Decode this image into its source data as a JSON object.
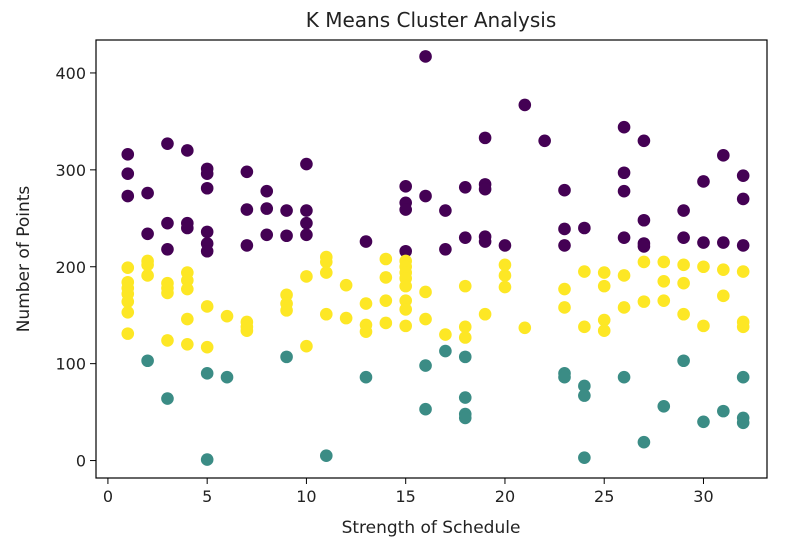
{
  "chart_data": {
    "type": "scatter",
    "title": "K Means Cluster Analysis",
    "xlabel": "Strength of Schedule",
    "ylabel": "Number of Points",
    "xlim": [
      -0.6,
      33.2
    ],
    "ylim": [
      -18,
      434
    ],
    "xticks": [
      0,
      5,
      10,
      15,
      20,
      25,
      30
    ],
    "yticks": [
      0,
      100,
      200,
      300,
      400
    ],
    "grid": false,
    "legend": "none",
    "colors": {
      "cluster_high": "#440154",
      "cluster_mid": "#fde725",
      "cluster_low": "#3b8c85"
    },
    "series": [
      {
        "color": "#440154",
        "points": [
          [
            1,
            316
          ],
          [
            1,
            296
          ],
          [
            1,
            273
          ],
          [
            2,
            276
          ],
          [
            2,
            234
          ],
          [
            3,
            327
          ],
          [
            3,
            245
          ],
          [
            3,
            218
          ],
          [
            4,
            320
          ],
          [
            4,
            245
          ],
          [
            4,
            240
          ],
          [
            5,
            301
          ],
          [
            5,
            296
          ],
          [
            5,
            281
          ],
          [
            5,
            236
          ],
          [
            5,
            224
          ],
          [
            5,
            216
          ],
          [
            7,
            298
          ],
          [
            7,
            259
          ],
          [
            7,
            222
          ],
          [
            8,
            278
          ],
          [
            8,
            260
          ],
          [
            8,
            233
          ],
          [
            9,
            258
          ],
          [
            9,
            232
          ],
          [
            10,
            306
          ],
          [
            10,
            258
          ],
          [
            10,
            245
          ],
          [
            10,
            233
          ],
          [
            13,
            226
          ],
          [
            15,
            283
          ],
          [
            15,
            266
          ],
          [
            15,
            259
          ],
          [
            15,
            216
          ],
          [
            16,
            417
          ],
          [
            16,
            273
          ],
          [
            17,
            258
          ],
          [
            17,
            218
          ],
          [
            18,
            282
          ],
          [
            18,
            230
          ],
          [
            19,
            333
          ],
          [
            19,
            285
          ],
          [
            19,
            280
          ],
          [
            19,
            231
          ],
          [
            19,
            226
          ],
          [
            20,
            222
          ],
          [
            21,
            367
          ],
          [
            22,
            330
          ],
          [
            23,
            279
          ],
          [
            23,
            239
          ],
          [
            23,
            222
          ],
          [
            24,
            240
          ],
          [
            26,
            344
          ],
          [
            26,
            297
          ],
          [
            26,
            278
          ],
          [
            26,
            230
          ],
          [
            27,
            330
          ],
          [
            27,
            248
          ],
          [
            27,
            224
          ],
          [
            27,
            221
          ],
          [
            29,
            258
          ],
          [
            29,
            230
          ],
          [
            30,
            288
          ],
          [
            30,
            225
          ],
          [
            31,
            315
          ],
          [
            31,
            225
          ],
          [
            32,
            294
          ],
          [
            32,
            270
          ],
          [
            32,
            222
          ]
        ]
      },
      {
        "color": "#fde725",
        "points": [
          [
            1,
            199
          ],
          [
            1,
            184
          ],
          [
            1,
            178
          ],
          [
            1,
            172
          ],
          [
            1,
            164
          ],
          [
            1,
            153
          ],
          [
            1,
            131
          ],
          [
            2,
            206
          ],
          [
            2,
            202
          ],
          [
            2,
            191
          ],
          [
            3,
            183
          ],
          [
            3,
            178
          ],
          [
            3,
            173
          ],
          [
            3,
            124
          ],
          [
            4,
            194
          ],
          [
            4,
            186
          ],
          [
            4,
            177
          ],
          [
            4,
            146
          ],
          [
            4,
            120
          ],
          [
            5,
            159
          ],
          [
            5,
            117
          ],
          [
            6,
            149
          ],
          [
            7,
            143
          ],
          [
            7,
            138
          ],
          [
            7,
            134
          ],
          [
            9,
            171
          ],
          [
            9,
            162
          ],
          [
            9,
            155
          ],
          [
            10,
            190
          ],
          [
            10,
            118
          ],
          [
            11,
            210
          ],
          [
            11,
            205
          ],
          [
            11,
            194
          ],
          [
            11,
            151
          ],
          [
            12,
            181
          ],
          [
            12,
            147
          ],
          [
            13,
            162
          ],
          [
            13,
            140
          ],
          [
            13,
            133
          ],
          [
            14,
            208
          ],
          [
            14,
            189
          ],
          [
            14,
            165
          ],
          [
            14,
            142
          ],
          [
            15,
            206
          ],
          [
            15,
            200
          ],
          [
            15,
            194
          ],
          [
            15,
            188
          ],
          [
            15,
            180
          ],
          [
            15,
            165
          ],
          [
            15,
            156
          ],
          [
            15,
            139
          ],
          [
            16,
            174
          ],
          [
            16,
            146
          ],
          [
            17,
            130
          ],
          [
            18,
            180
          ],
          [
            18,
            138
          ],
          [
            18,
            127
          ],
          [
            19,
            151
          ],
          [
            20,
            202
          ],
          [
            20,
            191
          ],
          [
            20,
            179
          ],
          [
            21,
            137
          ],
          [
            23,
            177
          ],
          [
            23,
            158
          ],
          [
            24,
            195
          ],
          [
            24,
            138
          ],
          [
            25,
            194
          ],
          [
            25,
            180
          ],
          [
            25,
            145
          ],
          [
            25,
            134
          ],
          [
            26,
            191
          ],
          [
            26,
            158
          ],
          [
            27,
            205
          ],
          [
            27,
            164
          ],
          [
            28,
            205
          ],
          [
            28,
            185
          ],
          [
            28,
            165
          ],
          [
            29,
            202
          ],
          [
            29,
            183
          ],
          [
            29,
            151
          ],
          [
            30,
            200
          ],
          [
            30,
            139
          ],
          [
            31,
            197
          ],
          [
            31,
            170
          ],
          [
            32,
            195
          ],
          [
            32,
            143
          ],
          [
            32,
            138
          ]
        ]
      },
      {
        "color": "#3b8c85",
        "points": [
          [
            2,
            103
          ],
          [
            3,
            64
          ],
          [
            5,
            90
          ],
          [
            5,
            1
          ],
          [
            6,
            86
          ],
          [
            9,
            107
          ],
          [
            11,
            5
          ],
          [
            13,
            86
          ],
          [
            16,
            98
          ],
          [
            16,
            53
          ],
          [
            17,
            113
          ],
          [
            18,
            107
          ],
          [
            18,
            65
          ],
          [
            18,
            48
          ],
          [
            18,
            44
          ],
          [
            23,
            90
          ],
          [
            23,
            86
          ],
          [
            24,
            77
          ],
          [
            24,
            67
          ],
          [
            24,
            3
          ],
          [
            26,
            86
          ],
          [
            27,
            19
          ],
          [
            28,
            56
          ],
          [
            29,
            103
          ],
          [
            30,
            40
          ],
          [
            31,
            51
          ],
          [
            32,
            86
          ],
          [
            32,
            44
          ],
          [
            32,
            39
          ]
        ]
      }
    ]
  }
}
